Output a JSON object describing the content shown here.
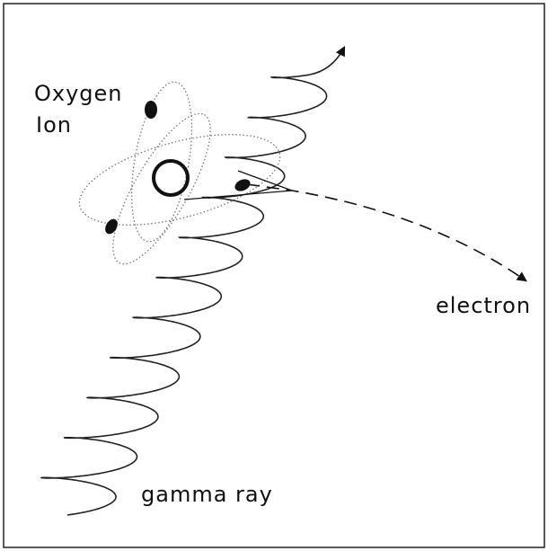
{
  "labels": {
    "ion_line1": "Oxygen",
    "ion_line2": "Ion",
    "electron": "electron",
    "gamma_ray": "gamma ray"
  }
}
